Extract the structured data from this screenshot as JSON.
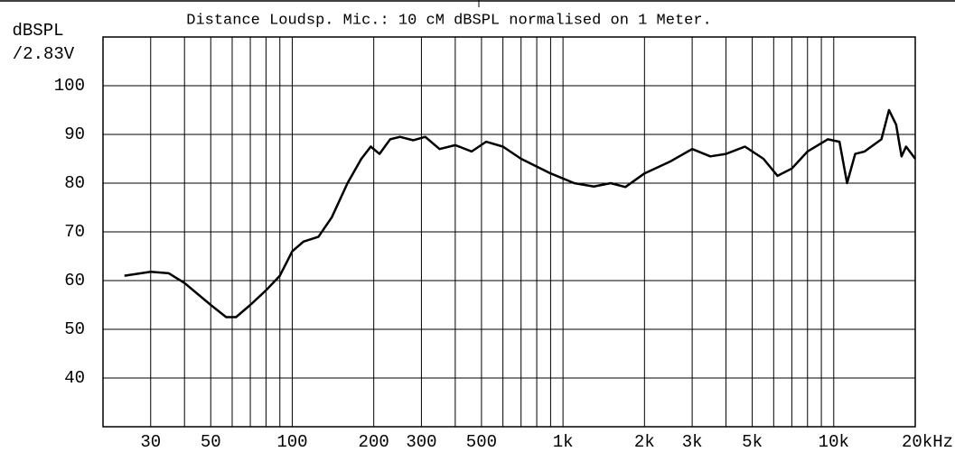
{
  "chart_data": {
    "type": "line",
    "title": "Distance Loudsp. Mic.: 10 cM dBSPL normalised on 1 Meter.",
    "ylabel": [
      "dBSPL",
      "/2.83V"
    ],
    "xscale": "log",
    "xlim": [
      20,
      20000
    ],
    "ylim": [
      30,
      110
    ],
    "yticks": [
      40,
      50,
      60,
      70,
      80,
      90,
      100
    ],
    "xticks": [
      30,
      50,
      100,
      200,
      300,
      500,
      {
        "value": 1000,
        "label": "1k"
      },
      {
        "value": 2000,
        "label": "2k"
      },
      {
        "value": 3000,
        "label": "3k"
      },
      {
        "value": 5000,
        "label": "5k"
      },
      {
        "value": 10000,
        "label": "10k"
      },
      {
        "value": 20000,
        "label": "20kHz"
      }
    ],
    "minor_xticks": [
      40,
      60,
      70,
      80,
      90,
      400,
      600,
      700,
      800,
      900,
      4000,
      6000,
      7000,
      8000,
      9000
    ],
    "grid": true,
    "series": [
      {
        "color": "#000000",
        "x": [
          24,
          30,
          35,
          40,
          50,
          57,
          62,
          70,
          80,
          90,
          100,
          110,
          125,
          140,
          160,
          180,
          195,
          210,
          230,
          250,
          280,
          310,
          350,
          400,
          460,
          520,
          600,
          700,
          900,
          1100,
          1300,
          1500,
          1700,
          2000,
          2500,
          3000,
          3500,
          4000,
          4700,
          5500,
          6200,
          7000,
          8000,
          9500,
          10500,
          11200,
          12000,
          13000,
          15000,
          16000,
          17000,
          17800,
          18500,
          20000
        ],
        "values": [
          61,
          61.8,
          61.5,
          59.5,
          55,
          52.5,
          52.5,
          55,
          58,
          61,
          66,
          68,
          69,
          73,
          80,
          85,
          87.5,
          86,
          89,
          89.5,
          88.8,
          89.5,
          87,
          87.8,
          86.5,
          88.5,
          87.5,
          85,
          82,
          80,
          79.3,
          80,
          79.2,
          82,
          84.5,
          87,
          85.5,
          86,
          87.5,
          85,
          81.5,
          83,
          86.5,
          89,
          88.5,
          80,
          86,
          86.5,
          89,
          95,
          92,
          85.5,
          87.5,
          85
        ]
      }
    ]
  }
}
